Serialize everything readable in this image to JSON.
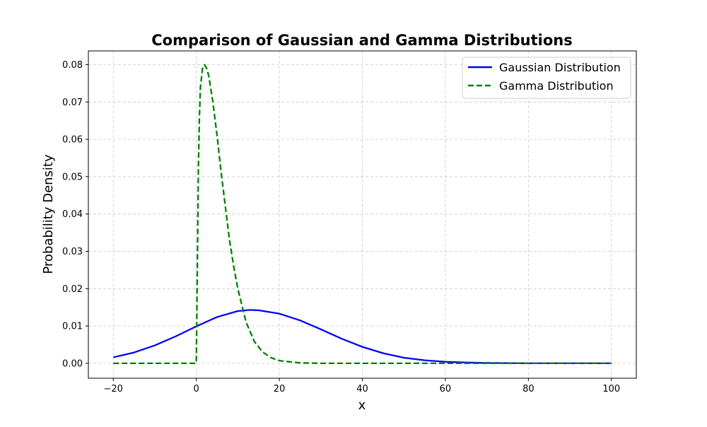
{
  "chart_data": {
    "type": "line",
    "title": "Comparison of Gaussian and Gamma Distributions",
    "xlabel": "x",
    "ylabel": "Probability Density",
    "xlim": [
      -26,
      106
    ],
    "ylim": [
      -0.004,
      0.0837
    ],
    "xticks": [
      -20,
      0,
      20,
      40,
      60,
      80,
      100
    ],
    "xtick_labels": [
      "−20",
      "0",
      "20",
      "40",
      "60",
      "80",
      "100"
    ],
    "yticks": [
      0.0,
      0.01,
      0.02,
      0.03,
      0.04,
      0.05,
      0.06,
      0.07,
      0.08
    ],
    "ytick_labels": [
      "0.00",
      "0.01",
      "0.02",
      "0.03",
      "0.04",
      "0.05",
      "0.06",
      "0.07",
      "0.08"
    ],
    "grid": true,
    "legend_position": "top-right",
    "series": [
      {
        "name": "Gaussian Distribution",
        "color": "#0000ff",
        "style": "solid",
        "x": [
          -20,
          -15,
          -10,
          -5,
          0,
          5,
          10,
          13,
          15,
          20,
          25,
          30,
          35,
          40,
          45,
          50,
          55,
          60,
          65,
          70,
          80,
          90,
          100
        ],
        "y": [
          0.0016,
          0.0029,
          0.0048,
          0.0072,
          0.0099,
          0.0124,
          0.014,
          0.0143,
          0.0142,
          0.0133,
          0.0115,
          0.0091,
          0.0066,
          0.0044,
          0.0027,
          0.0015,
          0.0008,
          0.0004,
          0.0002,
          0.0001,
          0.0,
          0.0,
          0.0
        ]
      },
      {
        "name": "Gamma Distribution",
        "color": "#008000",
        "style": "dashed",
        "x": [
          -20,
          -10,
          0,
          0.25,
          0.5,
          0.75,
          1,
          1.5,
          2,
          2.5,
          3,
          4,
          5,
          6,
          7,
          8,
          9,
          10,
          12,
          14,
          16,
          18,
          20,
          25,
          30,
          40,
          60,
          80,
          100
        ],
        "y": [
          0.0,
          0.0,
          0.0,
          0.025,
          0.052,
          0.066,
          0.074,
          0.079,
          0.08,
          0.079,
          0.077,
          0.07,
          0.061,
          0.051,
          0.042,
          0.033,
          0.026,
          0.02,
          0.011,
          0.0058,
          0.003,
          0.0015,
          0.0007,
          0.0001,
          0.0,
          0.0,
          0.0,
          0.0,
          0.0
        ]
      }
    ]
  }
}
